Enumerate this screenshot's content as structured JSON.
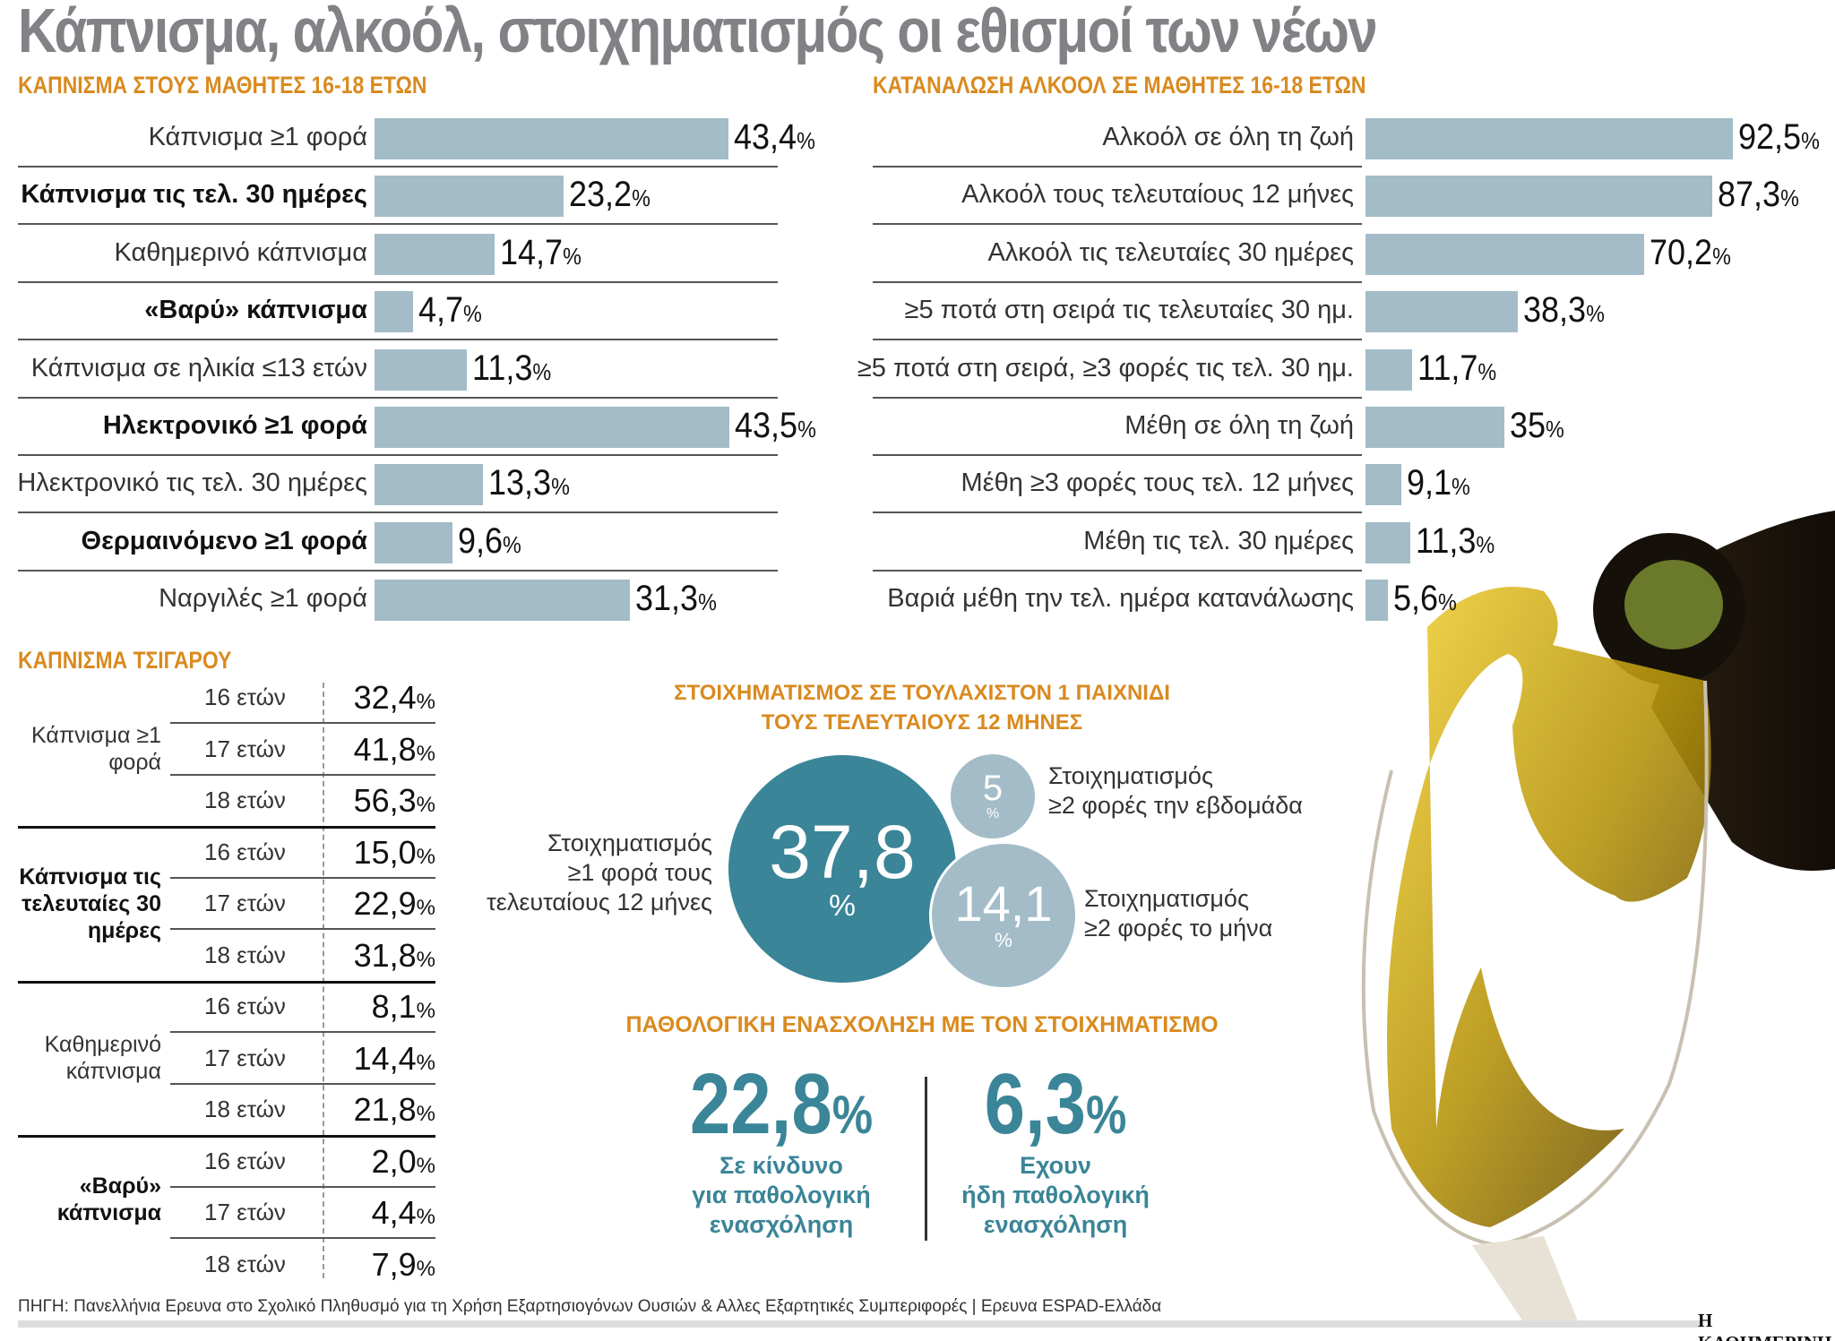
{
  "title": "Κάπνισμα, αλκοόλ, στοιχηματισμός οι εθισμοί των νέων",
  "colors": {
    "bar": "#a3bcc8",
    "heading": "#d98a1f",
    "teal": "#3a8597",
    "light_teal": "#a3bcc8",
    "title": "#808285"
  },
  "chart_data": [
    {
      "type": "bar",
      "orientation": "horizontal",
      "title": "ΚΑΠΝΙΣΜΑ ΣΤΟΥΣ ΜΑΘΗΤΕΣ 16-18 ΕΤΩΝ",
      "unit": "%",
      "categories": [
        "Κάπνισμα ≥1 φορά",
        "Κάπνισμα τις τελ. 30 ημέρες",
        "Καθημερινό κάπνισμα",
        "«Βαρύ» κάπνισμα",
        "Κάπνισμα σε ηλικία ≤13 ετών",
        "Ηλεκτρονικό ≥1 φορά",
        "Ηλεκτρονικό τις τελ. 30 ημέρες",
        "Θερμαινόμενο ≥1 φορά",
        "Ναργιλές ≥1 φορά"
      ],
      "bold": [
        false,
        true,
        false,
        true,
        false,
        true,
        false,
        true,
        false
      ],
      "values": [
        43.4,
        23.2,
        14.7,
        4.7,
        11.3,
        43.5,
        13.3,
        9.6,
        31.3
      ],
      "labels": [
        "43,4",
        "23,2",
        "14,7",
        "4,7",
        "11,3",
        "43,5",
        "13,3",
        "9,6",
        "31,3"
      ]
    },
    {
      "type": "bar",
      "orientation": "horizontal",
      "title": "ΚΑΤΑΝΑΛΩΣΗ ΑΛΚΟΟΛ ΣΕ ΜΑΘΗΤΕΣ 16-18 ΕΤΩΝ",
      "unit": "%",
      "categories": [
        "Αλκοόλ σε όλη τη ζωή",
        "Αλκοόλ τους τελευταίους 12 μήνες",
        "Αλκοόλ τις τελευταίες 30 ημέρες",
        "≥5 ποτά στη σειρά τις τελευταίες 30 ημ.",
        "≥5 ποτά στη σειρά,  ≥3 φορές τις τελ. 30 ημ.",
        "Μέθη σε όλη τη ζωή",
        "Μέθη ≥3 φορές τους τελ. 12 μήνες",
        "Μέθη τις τελ. 30 ημέρες",
        "Βαριά μέθη την τελ. ημέρα κατανάλωσης"
      ],
      "values": [
        92.5,
        87.3,
        70.2,
        38.3,
        11.7,
        35,
        9.1,
        11.3,
        5.6
      ],
      "labels": [
        "92,5",
        "87,3",
        "70,2",
        "38,3",
        "11,7",
        "35",
        "9,1",
        "11,3",
        "5,6"
      ]
    },
    {
      "type": "table",
      "title": "ΚΑΠΝΙΣΜΑ ΤΣΙΓΑΡΟΥ",
      "unit": "%",
      "groups": [
        {
          "label": "Κάπνισμα ≥1 φορά",
          "bold": false,
          "rows": [
            {
              "age": "16 ετών",
              "value": "32,4"
            },
            {
              "age": "17 ετών",
              "value": "41,8"
            },
            {
              "age": "18 ετών",
              "value": "56,3"
            }
          ]
        },
        {
          "label": "Κάπνισμα τις τελευταίες 30 ημέρες",
          "bold": true,
          "rows": [
            {
              "age": "16 ετών",
              "value": "15,0"
            },
            {
              "age": "17 ετών",
              "value": "22,9"
            },
            {
              "age": "18 ετών",
              "value": "31,8"
            }
          ]
        },
        {
          "label": "Καθημερινό κάπνισμα",
          "bold": false,
          "rows": [
            {
              "age": "16 ετών",
              "value": "8,1"
            },
            {
              "age": "17 ετών",
              "value": "14,4"
            },
            {
              "age": "18 ετών",
              "value": "21,8"
            }
          ]
        },
        {
          "label": "«Βαρύ» κάπνισμα",
          "bold": true,
          "rows": [
            {
              "age": "16 ετών",
              "value": "2,0"
            },
            {
              "age": "17 ετών",
              "value": "4,4"
            },
            {
              "age": "18 ετών",
              "value": "7,9"
            }
          ]
        }
      ]
    },
    {
      "type": "bubble",
      "title_line1": "ΣΤΟΙΧΗΜΑΤΙΣΜΟΣ ΣΕ ΤΟΥΛΑΧΙΣΤΟΝ 1 ΠΑΙΧΝΙΔΙ",
      "title_line2": "ΤΟΥΣ ΤΕΛΕΥΤΑΙΟΥΣ 12 ΜΗΝΕΣ",
      "unit": "%",
      "items": [
        {
          "value": 37.8,
          "label": "37,8",
          "text": [
            "Στοιχηματισμός",
            "≥1 φορά τους",
            "τελευταίους 12 μήνες"
          ]
        },
        {
          "value": 5,
          "label": "5",
          "text": [
            "Στοιχηματισμός",
            "≥2 φορές την εβδομάδα"
          ]
        },
        {
          "value": 14.1,
          "label": "14,1",
          "text": [
            "Στοιχηματισμός",
            "≥2 φορές το μήνα"
          ]
        }
      ]
    }
  ],
  "pathological": {
    "title": "ΠΑΘΟΛΟΓΙΚΗ ΕΝΑΣΧΟΛΗΣΗ ΜΕ ΤΟΝ ΣΤΟΙΧΗΜΑΤΙΣΜΟ",
    "items": [
      {
        "value": "22,8",
        "text": [
          "Σε κίνδυνο",
          "για παθολογική",
          "ενασχόληση"
        ]
      },
      {
        "value": "6,3",
        "text": [
          "Εχουν",
          "ήδη παθολογική",
          "ενασχόληση"
        ]
      }
    ]
  },
  "percent_sign": "%",
  "source": "ΠΗΓΗ: Πανελλήνια Ερευνα στο Σχολικό Πληθυσμό για τη Χρήση Εξαρτησιογόνων Ουσιών & Αλλες Εξαρτητικές Συμπεριφορές | Ερευνα ESPAD-Ελλάδα",
  "logo": "Η ΚΑΘΗΜΕΡΙΝΗ",
  "photo": "wine-bottle-pouring-into-glass"
}
